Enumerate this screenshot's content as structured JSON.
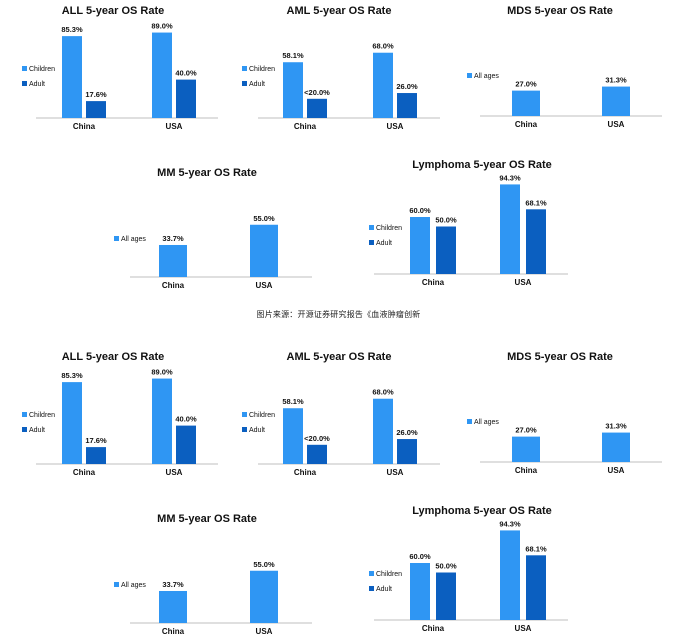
{
  "source_caption": "图片来源：开源证券研究报告《血液肿瘤创新",
  "colors": {
    "children": "#2f96f3",
    "adult": "#0b5fc0",
    "all_ages": "#2f96f3",
    "axis": "#bfbfbf",
    "text": "#111111"
  },
  "chart_data": [
    {
      "type": "bar",
      "title": "ALL 5-year OS Rate",
      "categories": [
        "China",
        "USA"
      ],
      "series": [
        {
          "name": "Children",
          "values": [
            85.3,
            89.0
          ],
          "labels": [
            "85.3%",
            "89.0%"
          ]
        },
        {
          "name": "Adult",
          "values": [
            17.6,
            40.0
          ],
          "labels": [
            "17.6%",
            "40.0%"
          ]
        }
      ],
      "ylim": [
        0,
        100
      ],
      "legend_position": "left",
      "grid": false
    },
    {
      "type": "bar",
      "title": "AML 5-year OS Rate",
      "categories": [
        "China",
        "USA"
      ],
      "series": [
        {
          "name": "Children",
          "values": [
            58.1,
            68.0
          ],
          "labels": [
            "58.1%",
            "68.0%"
          ]
        },
        {
          "name": "Adult",
          "values": [
            20.0,
            26.0
          ],
          "labels": [
            "<20.0%",
            "26.0%"
          ]
        }
      ],
      "ylim": [
        0,
        100
      ],
      "legend_position": "left",
      "grid": false
    },
    {
      "type": "bar",
      "title": "MDS 5-year OS Rate",
      "categories": [
        "China",
        "USA"
      ],
      "series": [
        {
          "name": "All ages",
          "values": [
            27.0,
            31.3
          ],
          "labels": [
            "27.0%",
            "31.3%"
          ]
        }
      ],
      "ylim": [
        0,
        100
      ],
      "legend_position": "left",
      "grid": false
    },
    {
      "type": "bar",
      "title": "MM 5-year OS Rate",
      "categories": [
        "China",
        "USA"
      ],
      "series": [
        {
          "name": "All ages",
          "values": [
            33.7,
            55.0
          ],
          "labels": [
            "33.7%",
            "55.0%"
          ]
        }
      ],
      "ylim": [
        0,
        100
      ],
      "legend_position": "left",
      "grid": false
    },
    {
      "type": "bar",
      "title": "Lymphoma 5-year OS Rate",
      "categories": [
        "China",
        "USA"
      ],
      "series": [
        {
          "name": "Children",
          "values": [
            60.0,
            94.3
          ],
          "labels": [
            "60.0%",
            "94.3%"
          ]
        },
        {
          "name": "Adult",
          "values": [
            50.0,
            68.1
          ],
          "labels": [
            "50.0%",
            "68.1%"
          ]
        }
      ],
      "ylim": [
        0,
        100
      ],
      "legend_position": "left",
      "grid": false
    }
  ]
}
